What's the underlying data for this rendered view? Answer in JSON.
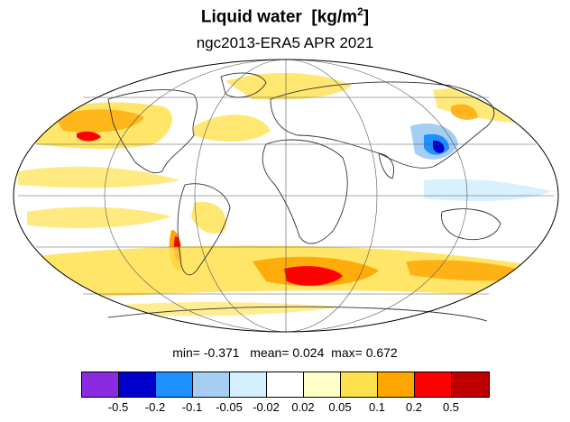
{
  "title": {
    "text": "Liquid water",
    "units_prefix": "[kg/m",
    "units_sup": "2",
    "units_suffix": "]"
  },
  "subtitle": "ngc2013-ERA5 APR 2021",
  "stats": {
    "min_label": "min=",
    "min": "-0.371",
    "mean_label": "mean=",
    "mean": "0.024",
    "max_label": "max=",
    "max": "0.672"
  },
  "colorbar": {
    "colors": [
      "#8a2be2",
      "#0000cd",
      "#1e90ff",
      "#a6cdf2",
      "#d4f0ff",
      "#ffffff",
      "#ffffc8",
      "#ffe14d",
      "#ffa500",
      "#ff0000",
      "#c00000"
    ],
    "tick_labels": [
      "-0.5",
      "-0.2",
      "-0.1",
      "-0.05",
      "-0.02",
      "0.02",
      "0.05",
      "0.1",
      "0.2",
      "0.5"
    ]
  },
  "map": {
    "projection": "Mollweide",
    "background": "#ffffff",
    "grid": true
  }
}
